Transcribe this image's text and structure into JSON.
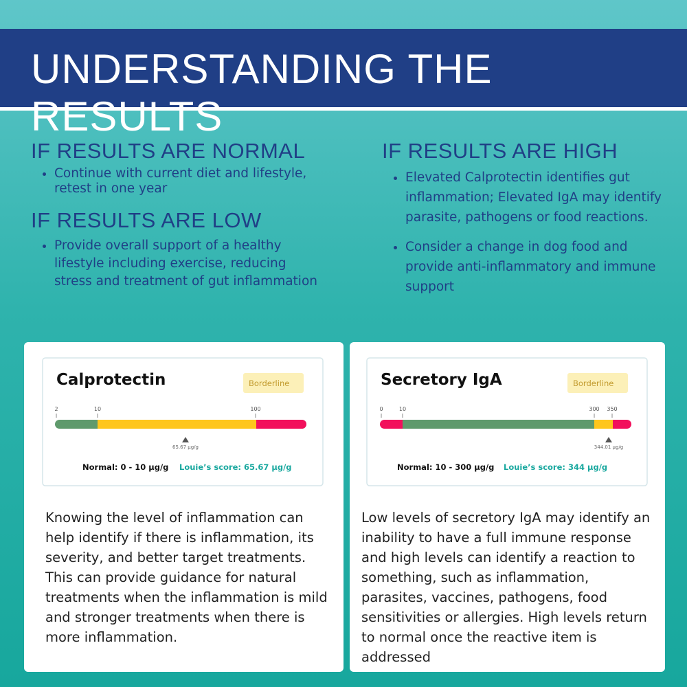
{
  "header": {
    "title": "UNDERSTANDING THE RESULTS"
  },
  "sections": {
    "normal": {
      "title": "IF RESULTS ARE NORMAL",
      "bullets": [
        "Continue with current diet and lifestyle, retest in one year"
      ]
    },
    "low": {
      "title": "IF RESULTS ARE LOW",
      "bullets": [
        "Provide overall support of a healthy lifestyle including exercise, reducing stress and treatment of gut inflammation"
      ]
    },
    "high": {
      "title": "IF RESULTS ARE HIGH",
      "bullets": [
        "Elevated Calprotectin identifies gut inflammation; Elevated IgA may identify parasite, pathogens or food reactions.",
        "Consider a change in dog food and provide anti-inflammatory and immune support"
      ]
    }
  },
  "cards": [
    {
      "gauge": {
        "title": "Calprotectin",
        "badge": "Borderline",
        "ticks": [
          "2",
          "10",
          "100"
        ],
        "marker_label": "65.67 µg/g",
        "normal": "Normal: 0 - 10 µg/g",
        "score": "Louie’s score: 65.67 µg/g"
      },
      "text": "Knowing the level of inflammation can help identify if there is inflammation, its severity, and better target treatments. This can provide guidance for natural treatments when the inflammation is mild and stronger treatments when there is more inflammation."
    },
    {
      "gauge": {
        "title": "Secretory IgA",
        "badge": "Borderline",
        "ticks": [
          "0",
          "10",
          "300",
          "350"
        ],
        "marker_label": "344.01 µg/g",
        "normal": "Normal: 10 - 300 µg/g",
        "score": "Louie’s score: 344 µg/g"
      },
      "text": "Low levels of secretory IgA may identify an inability to have a full immune response and high levels can identify a reaction to something, such as inflammation, parasites, vaccines, pathogens, food sensitivities or allergies. High levels return to normal once the reactive item is addressed"
    }
  ]
}
